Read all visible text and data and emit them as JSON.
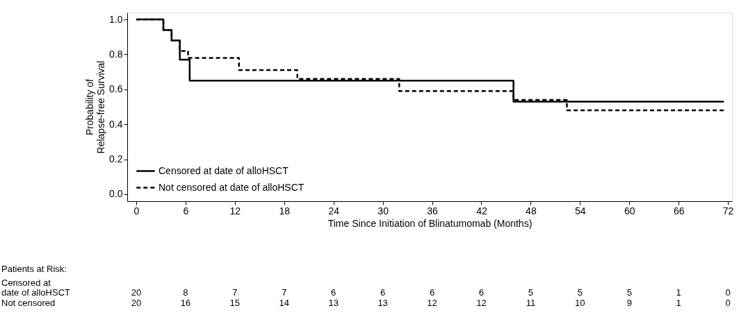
{
  "chart_data": {
    "type": "step",
    "xlabel": "Time Since Initiation of Blinatumomab (Months)",
    "ylabel": "Probability of\nRelapse-free Survival",
    "xlim": [
      -1.1,
      72.5
    ],
    "xticks": [
      0,
      6,
      12,
      18,
      24,
      30,
      36,
      42,
      48,
      54,
      60,
      66,
      72
    ],
    "ylim": [
      -0.04,
      1.04
    ],
    "yticks": [
      {
        "value": 0,
        "label": "0.0"
      },
      0.2,
      0.4,
      0.6,
      0.8,
      {
        "value": 1,
        "label": "1.0"
      }
    ],
    "grid": false,
    "legend": "bottom left",
    "series": [
      {
        "name": "Censored at date of alloHSCT",
        "color": "#000000",
        "line_style": "solid",
        "x": [
          0,
          3.3,
          4.3,
          5.3,
          6.5,
          45.9,
          71.5
        ],
        "values": [
          1.0,
          0.94,
          0.88,
          0.77,
          0.65,
          0.53,
          0.53
        ]
      },
      {
        "name": "Not censored at date of alloHSCT",
        "color": "#000000",
        "line_style": "dashed",
        "x": [
          0,
          3.3,
          4.3,
          5.3,
          6.3,
          12.5,
          19.6,
          32.0,
          45.9,
          52.4,
          71.5
        ],
        "values": [
          1.0,
          0.94,
          0.88,
          0.82,
          0.78,
          0.71,
          0.66,
          0.59,
          0.54,
          0.48,
          0.48
        ]
      }
    ],
    "annotations": [
      "Patients at Risk:",
      "Censored at\ndate of alloHSCT",
      "20 8 7 7 6 6 6 6 5 5 5 1 0",
      "Not censored",
      "20 16 15 14 13 13 12 12 11 10 9 1 0"
    ]
  }
}
